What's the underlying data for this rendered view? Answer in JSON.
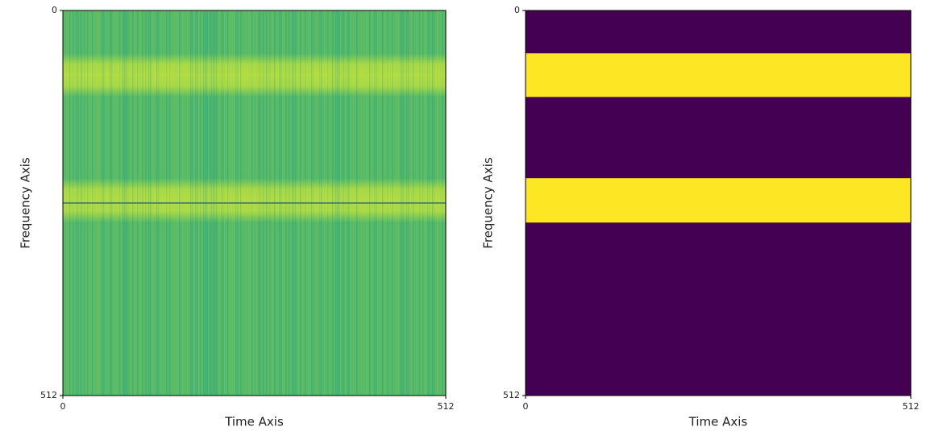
{
  "chart_data": [
    {
      "type": "spectrogram",
      "xlabel": "Time Axis",
      "ylabel": "Frequency Axis",
      "xlim": [
        0,
        512
      ],
      "ylim": [
        512,
        0
      ],
      "xticks": [
        0,
        512
      ],
      "yticks": [
        0,
        512
      ],
      "bands": [
        [
          57,
          115
        ],
        [
          223,
          282
        ]
      ],
      "dark_line": 256,
      "background_color": "#4fb86c",
      "band_color": "#b9de3c",
      "line_color": "#3a6f7a"
    },
    {
      "type": "mask",
      "xlabel": "Time Axis",
      "ylabel": "Frequency Axis",
      "xlim": [
        0,
        512
      ],
      "ylim": [
        512,
        0
      ],
      "xticks": [
        0,
        512
      ],
      "yticks": [
        0,
        512
      ],
      "bands": [
        [
          57,
          115
        ],
        [
          223,
          282
        ]
      ],
      "background_color": "#440154",
      "band_color": "#fde725"
    }
  ]
}
